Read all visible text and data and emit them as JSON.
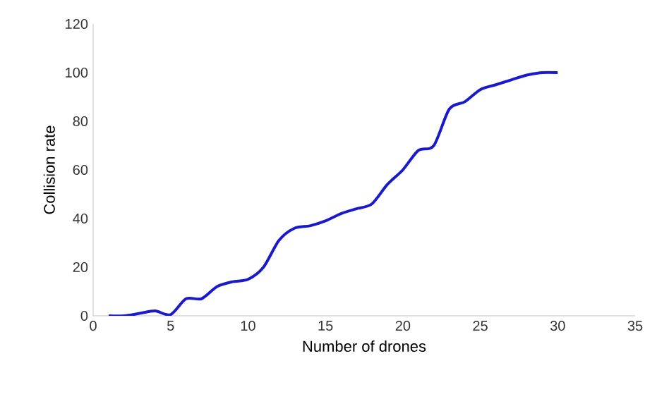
{
  "chart_data": {
    "type": "line",
    "xlabel": "Number of drones",
    "ylabel": "Collision rate",
    "x": [
      1,
      2,
      3,
      4,
      5,
      6,
      7,
      8,
      9,
      10,
      11,
      12,
      13,
      14,
      15,
      16,
      17,
      18,
      19,
      20,
      21,
      22,
      23,
      24,
      25,
      26,
      27,
      28,
      29,
      30
    ],
    "series": [
      {
        "color": "#1a1acc",
        "values": [
          0,
          0,
          1,
          2,
          0.5,
          7,
          7,
          12,
          14,
          15,
          20,
          31,
          36,
          37,
          39,
          42,
          44,
          46,
          54,
          60,
          68,
          70,
          85,
          88,
          93,
          95,
          97,
          99,
          100,
          100
        ]
      }
    ],
    "xlim": [
      0,
      35
    ],
    "xticks": [
      0,
      5,
      10,
      15,
      20,
      25,
      30,
      35
    ],
    "ylim": [
      0,
      120
    ],
    "yticks": [
      0,
      20,
      40,
      60,
      80,
      100,
      120
    ],
    "marker": "none",
    "line_style": "solid"
  }
}
